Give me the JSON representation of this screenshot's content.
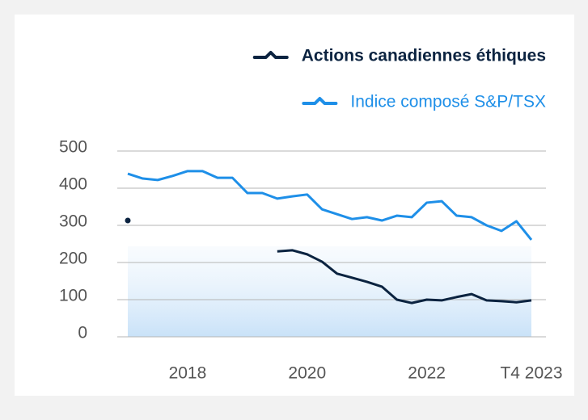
{
  "chart_data": {
    "type": "line",
    "categories": [
      null,
      null,
      null,
      null,
      "2018",
      null,
      null,
      null,
      null,
      null,
      null,
      null,
      "2020",
      null,
      null,
      null,
      null,
      null,
      null,
      null,
      "2022",
      null,
      null,
      null,
      null,
      null,
      null,
      "T4 2023"
    ],
    "series": [
      {
        "name": "Actions canadiennes éthiques",
        "color": "#0b2340",
        "values": [
          313,
          null,
          null,
          null,
          null,
          null,
          null,
          null,
          null,
          null,
          230,
          233,
          222,
          202,
          170,
          159,
          148,
          135,
          100,
          91,
          100,
          98,
          107,
          115,
          98,
          96,
          93,
          98
        ]
      },
      {
        "name": "Indice composé S&P/TSX",
        "color": "#1e8fe8",
        "values": [
          439,
          426,
          422,
          433,
          446,
          446,
          428,
          428,
          387,
          387,
          372,
          378,
          383,
          343,
          330,
          317,
          322,
          313,
          326,
          322,
          361,
          365,
          326,
          322,
          300,
          285,
          311,
          261
        ]
      }
    ],
    "ylim": [
      0,
      500
    ],
    "yticks": [
      0,
      100,
      200,
      300,
      400,
      500
    ],
    "grid": true,
    "legend": "top-right"
  }
}
